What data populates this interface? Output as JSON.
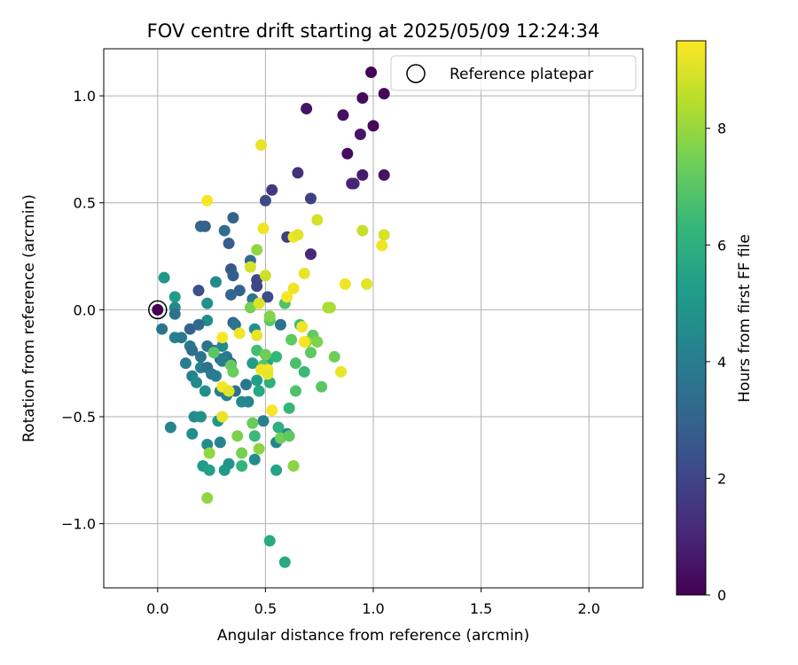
{
  "chart_data": {
    "type": "scatter",
    "title": "FOV centre drift starting at 2025/05/09 12:24:34",
    "xlabel": "Angular distance from reference (arcmin)",
    "ylabel": "Rotation from reference (arcmin)",
    "xlim": [
      -0.25,
      2.25
    ],
    "ylim": [
      -1.3,
      1.22
    ],
    "xticks": [
      0.0,
      0.5,
      1.0,
      1.5,
      2.0
    ],
    "xtick_labels": [
      "0.0",
      "0.5",
      "1.0",
      "1.5",
      "2.0"
    ],
    "yticks": [
      -1.0,
      -0.5,
      0.0,
      0.5,
      1.0
    ],
    "ytick_labels": [
      "−1.0",
      "−0.5",
      "0.0",
      "0.5",
      "1.0"
    ],
    "grid": true,
    "legend": {
      "position": "top-right",
      "entries": [
        "Reference platepar"
      ]
    },
    "reference_point": {
      "x": 0.0,
      "y": 0.0,
      "c": 0.0
    },
    "colorbar": {
      "label": "Hours from first FF file",
      "colormap": "viridis",
      "range": [
        0,
        9.5
      ],
      "ticks": [
        0,
        2,
        4,
        6,
        8
      ],
      "tick_labels": [
        "0",
        "2",
        "4",
        "6",
        "8"
      ],
      "stops": [
        "#440154",
        "#482878",
        "#3e4989",
        "#31688e",
        "#26828e",
        "#1f9e89",
        "#35b779",
        "#6ece58",
        "#b5de2b",
        "#fde725"
      ]
    },
    "points": [
      {
        "x": 0.99,
        "y": 1.11,
        "c": 0.1
      },
      {
        "x": 1.05,
        "y": 1.01,
        "c": 0.2
      },
      {
        "x": 0.95,
        "y": 0.99,
        "c": 0.3
      },
      {
        "x": 0.69,
        "y": 0.94,
        "c": 0.5
      },
      {
        "x": 0.86,
        "y": 0.91,
        "c": 0.4
      },
      {
        "x": 1.0,
        "y": 0.86,
        "c": 0.2
      },
      {
        "x": 0.94,
        "y": 0.82,
        "c": 0.6
      },
      {
        "x": 0.88,
        "y": 0.73,
        "c": 0.3
      },
      {
        "x": 0.65,
        "y": 0.64,
        "c": 1.3
      },
      {
        "x": 0.95,
        "y": 0.63,
        "c": 0.7
      },
      {
        "x": 1.05,
        "y": 0.63,
        "c": 0.5
      },
      {
        "x": 0.91,
        "y": 0.59,
        "c": 1.2
      },
      {
        "x": 0.9,
        "y": 0.59,
        "c": 1.0
      },
      {
        "x": 0.53,
        "y": 0.56,
        "c": 1.6
      },
      {
        "x": 0.71,
        "y": 0.52,
        "c": 1.8
      },
      {
        "x": 0.5,
        "y": 0.51,
        "c": 2.2
      },
      {
        "x": 0.35,
        "y": 0.43,
        "c": 3.0
      },
      {
        "x": 0.2,
        "y": 0.39,
        "c": 3.2
      },
      {
        "x": 0.22,
        "y": 0.39,
        "c": 3.0
      },
      {
        "x": 0.31,
        "y": 0.37,
        "c": 3.4
      },
      {
        "x": 0.6,
        "y": 0.34,
        "c": 1.8
      },
      {
        "x": 0.33,
        "y": 0.31,
        "c": 2.8
      },
      {
        "x": 0.71,
        "y": 0.26,
        "c": 1.1
      },
      {
        "x": 0.43,
        "y": 0.23,
        "c": 3.3
      },
      {
        "x": 0.34,
        "y": 0.19,
        "c": 2.6
      },
      {
        "x": 0.35,
        "y": 0.16,
        "c": 2.9
      },
      {
        "x": 0.46,
        "y": 0.14,
        "c": 2.1
      },
      {
        "x": 0.27,
        "y": 0.13,
        "c": 4.5
      },
      {
        "x": 0.46,
        "y": 0.11,
        "c": 2.0
      },
      {
        "x": 0.38,
        "y": 0.09,
        "c": 3.0
      },
      {
        "x": 0.19,
        "y": 0.09,
        "c": 2.4
      },
      {
        "x": 0.34,
        "y": 0.07,
        "c": 3.1
      },
      {
        "x": 0.51,
        "y": 0.06,
        "c": 2.2
      },
      {
        "x": 0.44,
        "y": 0.05,
        "c": 3.8
      },
      {
        "x": 0.03,
        "y": 0.15,
        "c": 5.0
      },
      {
        "x": 0.08,
        "y": 0.06,
        "c": 5.2
      },
      {
        "x": 0.23,
        "y": 0.03,
        "c": 4.8
      },
      {
        "x": 0.08,
        "y": 0.01,
        "c": 4.5
      },
      {
        "x": 0.08,
        "y": -0.02,
        "c": 3.6
      },
      {
        "x": 0.23,
        "y": -0.05,
        "c": 4.6
      },
      {
        "x": 0.35,
        "y": -0.06,
        "c": 3.2
      },
      {
        "x": 0.36,
        "y": -0.07,
        "c": 3.6
      },
      {
        "x": 0.19,
        "y": -0.07,
        "c": 3.3
      },
      {
        "x": 0.15,
        "y": -0.09,
        "c": 3.0
      },
      {
        "x": 0.02,
        "y": -0.09,
        "c": 3.6
      },
      {
        "x": 0.08,
        "y": -0.13,
        "c": 4.2
      },
      {
        "x": 0.11,
        "y": -0.13,
        "c": 3.9
      },
      {
        "x": 0.23,
        "y": -0.17,
        "c": 3.6
      },
      {
        "x": 0.15,
        "y": -0.17,
        "c": 3.8
      },
      {
        "x": 0.16,
        "y": -0.19,
        "c": 3.4
      },
      {
        "x": 0.26,
        "y": -0.19,
        "c": 3.5
      },
      {
        "x": 0.2,
        "y": -0.22,
        "c": 3.7
      },
      {
        "x": 0.29,
        "y": -0.23,
        "c": 3.6
      },
      {
        "x": 0.32,
        "y": -0.22,
        "c": 3.8
      },
      {
        "x": 0.3,
        "y": -0.24,
        "c": 4.0
      },
      {
        "x": 0.34,
        "y": -0.25,
        "c": 3.4
      },
      {
        "x": 0.13,
        "y": -0.25,
        "c": 4.0
      },
      {
        "x": 0.2,
        "y": -0.27,
        "c": 4.2
      },
      {
        "x": 0.23,
        "y": -0.27,
        "c": 3.5
      },
      {
        "x": 0.25,
        "y": -0.3,
        "c": 3.9
      },
      {
        "x": 0.16,
        "y": -0.31,
        "c": 4.2
      },
      {
        "x": 0.27,
        "y": -0.31,
        "c": 4.1
      },
      {
        "x": 0.18,
        "y": -0.34,
        "c": 4.5
      },
      {
        "x": 0.41,
        "y": -0.35,
        "c": 3.8
      },
      {
        "x": 0.29,
        "y": -0.38,
        "c": 4.0
      },
      {
        "x": 0.22,
        "y": -0.38,
        "c": 4.7
      },
      {
        "x": 0.36,
        "y": -0.38,
        "c": 3.5
      },
      {
        "x": 0.32,
        "y": -0.4,
        "c": 4.2
      },
      {
        "x": 0.42,
        "y": -0.43,
        "c": 4.3
      },
      {
        "x": 0.39,
        "y": -0.43,
        "c": 4.4
      },
      {
        "x": 0.17,
        "y": -0.5,
        "c": 4.6
      },
      {
        "x": 0.2,
        "y": -0.5,
        "c": 4.8
      },
      {
        "x": 0.28,
        "y": -0.52,
        "c": 5.0
      },
      {
        "x": 0.49,
        "y": -0.52,
        "c": 4.1
      },
      {
        "x": 0.06,
        "y": -0.55,
        "c": 4.3
      },
      {
        "x": 0.16,
        "y": -0.58,
        "c": 4.7
      },
      {
        "x": 0.6,
        "y": -0.58,
        "c": 4.5
      },
      {
        "x": 0.23,
        "y": -0.63,
        "c": 4.6
      },
      {
        "x": 0.29,
        "y": -0.62,
        "c": 4.3
      },
      {
        "x": 0.55,
        "y": -0.62,
        "c": 4.4
      },
      {
        "x": 0.21,
        "y": -0.73,
        "c": 5.2
      },
      {
        "x": 0.33,
        "y": -0.72,
        "c": 4.9
      },
      {
        "x": 0.45,
        "y": -0.7,
        "c": 4.6
      },
      {
        "x": 0.31,
        "y": -0.75,
        "c": 5.1
      },
      {
        "x": 0.24,
        "y": -0.75,
        "c": 5.4
      },
      {
        "x": 0.55,
        "y": -0.75,
        "c": 5.5
      },
      {
        "x": 0.39,
        "y": -0.73,
        "c": 6.2
      },
      {
        "x": 0.52,
        "y": -1.08,
        "c": 5.8
      },
      {
        "x": 0.59,
        "y": -1.18,
        "c": 5.7
      },
      {
        "x": 0.45,
        "y": -0.09,
        "c": 4.8
      },
      {
        "x": 0.3,
        "y": -0.17,
        "c": 4.5
      },
      {
        "x": 0.44,
        "y": -0.25,
        "c": 5.2
      },
      {
        "x": 0.51,
        "y": -0.24,
        "c": 5.6
      },
      {
        "x": 0.46,
        "y": -0.33,
        "c": 5.3
      },
      {
        "x": 0.47,
        "y": -0.38,
        "c": 5.6
      },
      {
        "x": 0.52,
        "y": -0.34,
        "c": 6.0
      },
      {
        "x": 0.55,
        "y": -0.22,
        "c": 6.3
      },
      {
        "x": 0.57,
        "y": -0.07,
        "c": 3.6
      },
      {
        "x": 0.52,
        "y": -0.05,
        "c": 7.0
      },
      {
        "x": 0.59,
        "y": 0.03,
        "c": 6.8
      },
      {
        "x": 0.46,
        "y": -0.19,
        "c": 6.6
      },
      {
        "x": 0.26,
        "y": -0.2,
        "c": 7.0
      },
      {
        "x": 0.34,
        "y": -0.26,
        "c": 7.2
      },
      {
        "x": 0.35,
        "y": -0.29,
        "c": 7.3
      },
      {
        "x": 0.5,
        "y": -0.21,
        "c": 7.4
      },
      {
        "x": 0.49,
        "y": -0.26,
        "c": 6.9
      },
      {
        "x": 0.62,
        "y": -0.14,
        "c": 7.1
      },
      {
        "x": 0.66,
        "y": -0.07,
        "c": 6.5
      },
      {
        "x": 0.64,
        "y": -0.25,
        "c": 6.7
      },
      {
        "x": 0.68,
        "y": -0.29,
        "c": 6.4
      },
      {
        "x": 0.64,
        "y": -0.38,
        "c": 6.8
      },
      {
        "x": 0.61,
        "y": -0.46,
        "c": 6.3
      },
      {
        "x": 0.56,
        "y": -0.55,
        "c": 6.0
      },
      {
        "x": 0.44,
        "y": -0.53,
        "c": 7.3
      },
      {
        "x": 0.45,
        "y": -0.59,
        "c": 6.4
      },
      {
        "x": 0.37,
        "y": -0.59,
        "c": 7.6
      },
      {
        "x": 0.57,
        "y": -0.6,
        "c": 7.4
      },
      {
        "x": 0.61,
        "y": -0.59,
        "c": 7.1
      },
      {
        "x": 0.47,
        "y": -0.65,
        "c": 7.8
      },
      {
        "x": 0.24,
        "y": -0.67,
        "c": 7.9
      },
      {
        "x": 0.39,
        "y": -0.67,
        "c": 7.5
      },
      {
        "x": 0.63,
        "y": -0.73,
        "c": 7.8
      },
      {
        "x": 0.23,
        "y": -0.88,
        "c": 7.9
      },
      {
        "x": 0.72,
        "y": -0.12,
        "c": 7.2
      },
      {
        "x": 0.74,
        "y": -0.15,
        "c": 7.6
      },
      {
        "x": 0.71,
        "y": -0.2,
        "c": 7.1
      },
      {
        "x": 0.76,
        "y": -0.36,
        "c": 7.0
      },
      {
        "x": 0.82,
        "y": -0.22,
        "c": 7.4
      },
      {
        "x": 0.69,
        "y": -0.15,
        "c": 8.1
      },
      {
        "x": 0.79,
        "y": 0.01,
        "c": 8.2
      },
      {
        "x": 0.8,
        "y": 0.01,
        "c": 8.3
      },
      {
        "x": 0.46,
        "y": 0.28,
        "c": 7.9
      },
      {
        "x": 0.43,
        "y": 0.01,
        "c": 7.5
      },
      {
        "x": 0.52,
        "y": -0.03,
        "c": 7.7
      },
      {
        "x": 0.5,
        "y": 0.16,
        "c": 8.8
      },
      {
        "x": 0.43,
        "y": 0.2,
        "c": 8.9
      },
      {
        "x": 0.48,
        "y": 0.77,
        "c": 9.2
      },
      {
        "x": 0.49,
        "y": 0.38,
        "c": 9.3
      },
      {
        "x": 0.63,
        "y": 0.34,
        "c": 9.4
      },
      {
        "x": 0.65,
        "y": 0.35,
        "c": 9.1
      },
      {
        "x": 0.74,
        "y": 0.42,
        "c": 8.9
      },
      {
        "x": 0.68,
        "y": 0.17,
        "c": 9.2
      },
      {
        "x": 0.63,
        "y": 0.1,
        "c": 9.3
      },
      {
        "x": 0.6,
        "y": 0.06,
        "c": 9.4
      },
      {
        "x": 0.87,
        "y": 0.12,
        "c": 9.3
      },
      {
        "x": 0.97,
        "y": 0.12,
        "c": 9.1
      },
      {
        "x": 0.95,
        "y": 0.37,
        "c": 8.7
      },
      {
        "x": 1.05,
        "y": 0.35,
        "c": 8.9
      },
      {
        "x": 1.04,
        "y": 0.3,
        "c": 9.3
      },
      {
        "x": 0.23,
        "y": 0.51,
        "c": 9.4
      },
      {
        "x": 0.47,
        "y": 0.03,
        "c": 9.0
      },
      {
        "x": 0.38,
        "y": -0.11,
        "c": 9.3
      },
      {
        "x": 0.3,
        "y": -0.13,
        "c": 9.4
      },
      {
        "x": 0.46,
        "y": -0.12,
        "c": 9.2
      },
      {
        "x": 0.48,
        "y": -0.28,
        "c": 9.3
      },
      {
        "x": 0.51,
        "y": -0.28,
        "c": 9.4
      },
      {
        "x": 0.51,
        "y": -0.3,
        "c": 9.2
      },
      {
        "x": 0.3,
        "y": -0.36,
        "c": 9.4
      },
      {
        "x": 0.33,
        "y": -0.38,
        "c": 9.1
      },
      {
        "x": 0.53,
        "y": -0.47,
        "c": 9.4
      },
      {
        "x": 0.3,
        "y": -0.5,
        "c": 9.2
      },
      {
        "x": 0.67,
        "y": -0.08,
        "c": 9.3
      },
      {
        "x": 0.68,
        "y": -0.15,
        "c": 9.4
      },
      {
        "x": 0.85,
        "y": -0.29,
        "c": 9.2
      }
    ]
  }
}
